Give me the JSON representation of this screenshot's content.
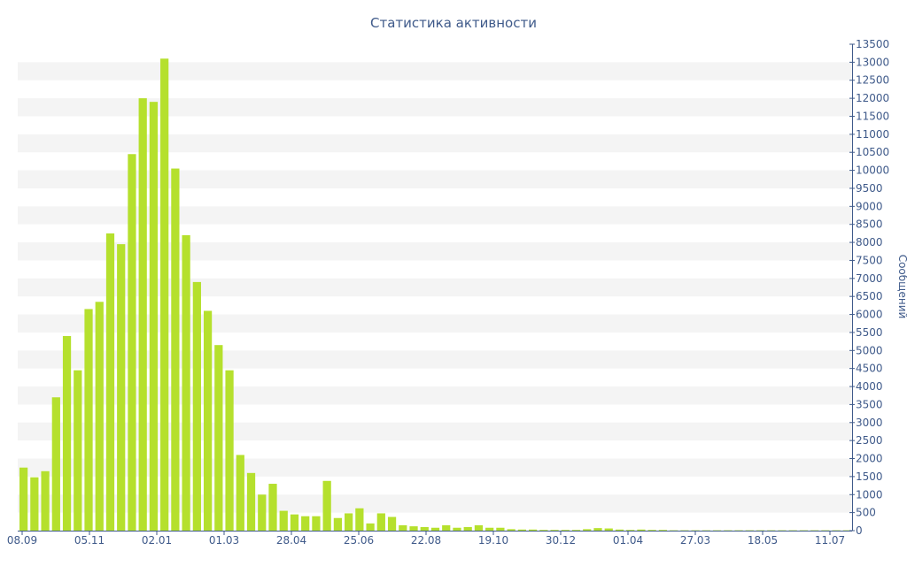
{
  "chart_data": {
    "type": "bar",
    "title": "Статистика активности",
    "ylabel": "Сообщений",
    "xlabel": "",
    "ylim": [
      0,
      13500
    ],
    "yticks": [
      0,
      500,
      1000,
      1500,
      2000,
      2500,
      3000,
      3500,
      4000,
      4500,
      5000,
      5500,
      6000,
      6500,
      7000,
      7500,
      8000,
      8500,
      9000,
      9500,
      10000,
      10500,
      11000,
      11500,
      12000,
      12500,
      13000,
      13500
    ],
    "y_axis_side": "right",
    "grid": "alternating horizontal bands",
    "xtick_labels": [
      "08.09",
      "05.11",
      "02.01",
      "01.03",
      "28.04",
      "25.06",
      "22.08",
      "19.10",
      "30.12",
      "01.04",
      "27.03",
      "18.05",
      "11.07"
    ],
    "bar_color": "#b5e02d",
    "values": [
      1750,
      1480,
      1650,
      3700,
      5400,
      4450,
      6150,
      6350,
      8250,
      7950,
      10450,
      12000,
      11900,
      13100,
      10050,
      8200,
      6900,
      6100,
      5150,
      4450,
      2100,
      1600,
      1000,
      1300,
      550,
      450,
      400,
      400,
      1380,
      350,
      480,
      620,
      200,
      480,
      380,
      150,
      120,
      100,
      80,
      150,
      80,
      100,
      150,
      80,
      80,
      40,
      30,
      30,
      20,
      20,
      20,
      20,
      40,
      70,
      60,
      30,
      20,
      30,
      20,
      20,
      10,
      10,
      10,
      10,
      10,
      10,
      10,
      10,
      10,
      10,
      10,
      10,
      10,
      10,
      10,
      10,
      10
    ]
  }
}
